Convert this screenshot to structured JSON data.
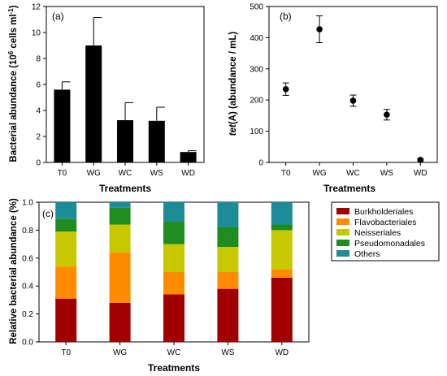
{
  "chart_data": [
    {
      "type": "bar",
      "panel_label": "(a)",
      "categories": [
        "T0",
        "WG",
        "WC",
        "WS",
        "WD"
      ],
      "values": [
        5.6,
        9.0,
        3.25,
        3.2,
        0.8
      ],
      "errors": [
        0.6,
        2.15,
        1.35,
        1.05,
        0.1
      ],
      "xlabel": "Treatments",
      "ylabel": "Bacterial abundance (10⁶ cells ml⁻¹)",
      "ylim": [
        0,
        12
      ],
      "yticks": [
        0,
        2,
        4,
        6,
        8,
        10,
        12
      ],
      "color": "#000000"
    },
    {
      "type": "scatter",
      "panel_label": "(b)",
      "categories": [
        "T0",
        "WG",
        "WC",
        "WS",
        "WD"
      ],
      "values": [
        235,
        427,
        198,
        153,
        8
      ],
      "errors": [
        20,
        43,
        18,
        17,
        3
      ],
      "xlabel": "Treatments",
      "ylabel": "tet(A) (abundance / mL)",
      "ylim": [
        0,
        500
      ],
      "yticks": [
        0,
        100,
        200,
        300,
        400,
        500
      ],
      "color": "#000000"
    },
    {
      "type": "bar",
      "stacked": true,
      "panel_label": "(c)",
      "categories": [
        "T0",
        "WG",
        "WC",
        "WS",
        "WD"
      ],
      "series": [
        {
          "name": "Burkholderiales",
          "values": [
            0.31,
            0.28,
            0.34,
            0.38,
            0.46
          ],
          "color": "#a00000"
        },
        {
          "name": "Flavobacteriales",
          "values": [
            0.23,
            0.36,
            0.16,
            0.12,
            0.06
          ],
          "color": "#ff8c00"
        },
        {
          "name": "Neisseriales",
          "values": [
            0.25,
            0.2,
            0.2,
            0.18,
            0.28
          ],
          "color": "#c8c800"
        },
        {
          "name": "Pseudomonadales",
          "values": [
            0.09,
            0.12,
            0.16,
            0.14,
            0.04
          ],
          "color": "#1e8c1e"
        },
        {
          "name": "Others",
          "values": [
            0.12,
            0.04,
            0.14,
            0.18,
            0.16
          ],
          "color": "#1e8c96"
        }
      ],
      "xlabel": "Treatments",
      "ylabel": "Relative bacterial abundance (%)",
      "ylim": [
        0,
        1.0
      ],
      "yticks": [
        "0.0",
        "0.2",
        "0.4",
        "0.6",
        "0.8",
        "1.0"
      ],
      "legend_position": "right"
    }
  ]
}
